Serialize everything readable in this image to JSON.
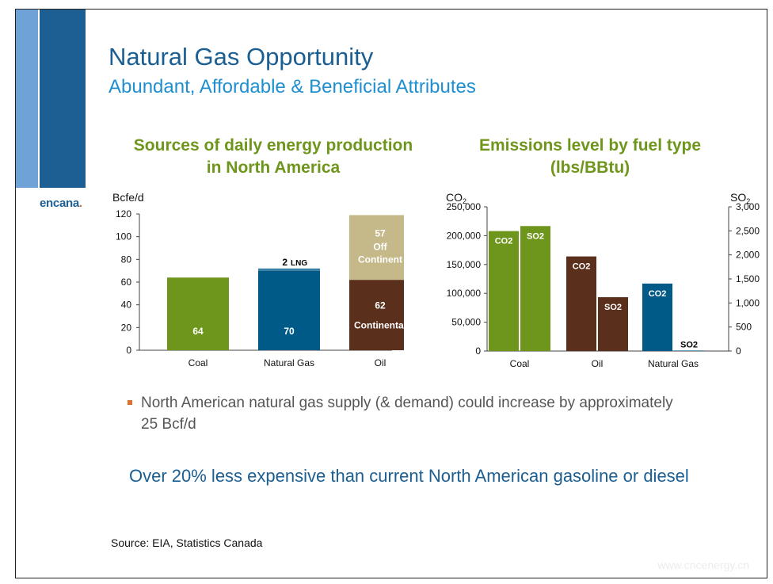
{
  "slide": {
    "title": "Natural Gas Opportunity",
    "subtitle": "Abundant, Affordable & Beneficial Attributes",
    "logo_text": "encana",
    "bullet": "North American natural gas supply (& demand) could increase by approximately 25 Bcf/d",
    "highlight": "Over 20% less expensive than current North American gasoline or diesel",
    "source": "Source: EIA, Statistics Canada",
    "watermark": "www.cncenergy.cn",
    "colors": {
      "title": "#1b5e92",
      "subtitle": "#1f8fd0",
      "chart_title": "#6f961c",
      "band_light": "#6fa3d8",
      "band_dark": "#1d5f93",
      "bullet_mark": "#e07030"
    }
  },
  "chart_data": [
    {
      "type": "bar",
      "stacked": true,
      "title_line1": "Sources of daily energy production",
      "title_line2": "in North America",
      "ylabel": "Bcfe/d",
      "ylim": [
        0,
        120
      ],
      "yticks": [
        0,
        20,
        40,
        60,
        80,
        100,
        120
      ],
      "categories": [
        "Coal",
        "Natural Gas",
        "Oil"
      ],
      "stacks": [
        {
          "category": "Coal",
          "segments": [
            {
              "value": 64,
              "label": "64",
              "color": "#6f961c",
              "text_color": "#ffffff"
            }
          ]
        },
        {
          "category": "Natural Gas",
          "segments": [
            {
              "value": 70,
              "label": "70",
              "color": "#005a87",
              "text_color": "#ffffff"
            },
            {
              "value": 2,
              "label": "2",
              "label2": "LNG",
              "color": "#3a7fa6",
              "text_color": "#000000",
              "label_outside": true
            }
          ]
        },
        {
          "category": "Oil",
          "segments": [
            {
              "value": 62,
              "label": "62",
              "label2": "Continental",
              "color": "#5a2f1b",
              "text_color": "#ffffff"
            },
            {
              "value": 57,
              "label": "57",
              "label2": "Off",
              "label3": "Continent",
              "color": "#c5b98a",
              "text_color": "#ffffff"
            }
          ]
        }
      ]
    },
    {
      "type": "bar",
      "dual_axis": true,
      "title_line1": "Emissions level by fuel type",
      "title_line2": "(lbs/BBtu)",
      "ylabel_left": "CO",
      "ylabel_left_sub": "2",
      "ylabel_right": "SO",
      "ylabel_right_sub": "2",
      "ylim_left": [
        0,
        250000
      ],
      "ylim_right": [
        0,
        3000
      ],
      "yticks_left": [
        "0",
        "50,000",
        "100,000",
        "150,000",
        "200,000",
        "250,000"
      ],
      "yticks_left_values": [
        0,
        50000,
        100000,
        150000,
        200000,
        250000
      ],
      "yticks_right": [
        "0",
        "500",
        "1,000",
        "1,500",
        "2,000",
        "2,500",
        "3,000"
      ],
      "yticks_right_values": [
        0,
        500,
        1000,
        1500,
        2000,
        2500,
        3000
      ],
      "categories": [
        "Coal",
        "Oil",
        "Natural Gas"
      ],
      "series": [
        {
          "name": "CO2",
          "axis": "left",
          "values": [
            208000,
            164000,
            117000
          ],
          "colors": [
            "#6f961c",
            "#5a2f1b",
            "#005a87"
          ]
        },
        {
          "name": "SO2",
          "axis": "right",
          "values": [
            2600,
            1120,
            10
          ],
          "colors": [
            "#6f961c",
            "#5a2f1b",
            "#005a87"
          ]
        }
      ],
      "bar_labels": [
        "CO2",
        "SO2",
        "CO2",
        "SO2",
        "CO2",
        "SO2"
      ]
    }
  ]
}
